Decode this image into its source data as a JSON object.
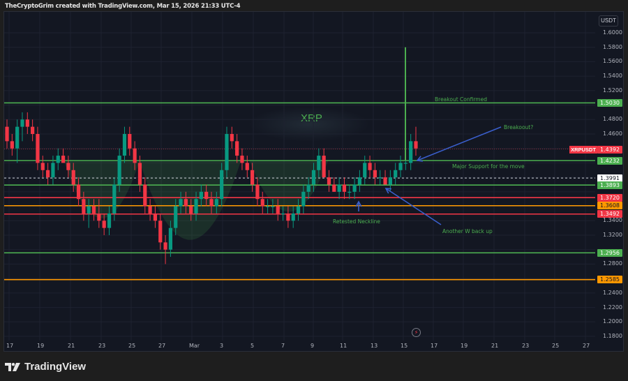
{
  "header": {
    "attribution": "TheCryptoGrim created with TradingView.com, Mar 15, 2026 21:33 UTC-4"
  },
  "footer": {
    "logo_text": "TradingView",
    "logo_icon": "tradingview-logo-icon"
  },
  "chart": {
    "symbol": "XRPUSDT",
    "watermark": "XRP",
    "currency": "USDT",
    "current_price": "1.4392",
    "colors": {
      "background": "#131722",
      "up": "#089981",
      "down": "#f23645",
      "green_line": "#4caf50",
      "red_line": "#f23645",
      "orange_line": "#ff9800",
      "arrow": "#3a5fcd",
      "grid": "#1e2230"
    }
  },
  "price_axis": {
    "ticks": [
      "1.6000",
      "1.5800",
      "1.5600",
      "1.5400",
      "1.5200",
      "1.4800",
      "1.4600",
      "1.3400",
      "1.3200",
      "1.2800",
      "1.2400",
      "1.2200",
      "1.2000",
      "1.1800"
    ]
  },
  "time_axis": {
    "ticks": [
      "17",
      "19",
      "21",
      "23",
      "25",
      "27",
      "Mar",
      "3",
      "5",
      "7",
      "9",
      "11",
      "13",
      "15",
      "17",
      "19",
      "21",
      "23",
      "25",
      "27"
    ]
  },
  "levels": [
    {
      "label": "1.5030",
      "color": "#4caf50",
      "kind": "green"
    },
    {
      "label": "1.4232",
      "color": "#4caf50",
      "kind": "green"
    },
    {
      "label": "1.3991",
      "color": "#ffffff",
      "kind": "dashed"
    },
    {
      "label": "1.3893",
      "color": "#4caf50",
      "kind": "green"
    },
    {
      "label": "1.3720",
      "color": "#f23645",
      "kind": "red"
    },
    {
      "label": "1.3608",
      "color": "#ff9800",
      "kind": "orange"
    },
    {
      "label": "1.3492",
      "color": "#f23645",
      "kind": "red"
    },
    {
      "label": "1.2956",
      "color": "#4caf50",
      "kind": "green"
    },
    {
      "label": "1.2585",
      "color": "#ff9800",
      "kind": "orange"
    }
  ],
  "annotations": {
    "breakout_confirmed": "Breakout Confirmed",
    "breakout_question": "Breakoout?",
    "major_support": "Major Support for the move",
    "retested_neckline": "Retested Neckline",
    "another_w": "Another W back up"
  },
  "chart_data": {
    "type": "candlestick",
    "title": "XRPUSDT",
    "watermark": "XRP",
    "xlabel": "",
    "ylabel": "USDT",
    "ylim": [
      1.17,
      1.61
    ],
    "x_ticks": [
      "17",
      "19",
      "21",
      "23",
      "25",
      "27",
      "Mar",
      "3",
      "5",
      "7",
      "9",
      "11",
      "13",
      "15",
      "17",
      "19",
      "21",
      "23",
      "25",
      "27"
    ],
    "y_ticks": [
      1.18,
      1.2,
      1.22,
      1.24,
      1.26,
      1.28,
      1.3,
      1.32,
      1.34,
      1.36,
      1.38,
      1.4,
      1.42,
      1.44,
      1.46,
      1.48,
      1.5,
      1.52,
      1.54,
      1.56,
      1.58,
      1.6
    ],
    "grid": true,
    "horizontal_levels": [
      1.503,
      1.4232,
      1.3991,
      1.3893,
      1.372,
      1.3608,
      1.3492,
      1.2956,
      1.2585
    ],
    "vertical_marker": {
      "x": "15",
      "from": 1.4232,
      "to": 1.58
    },
    "last_price": 1.4392,
    "candles_ohlc_approx": [
      [
        1.47,
        1.48,
        1.44,
        1.45
      ],
      [
        1.45,
        1.46,
        1.43,
        1.44
      ],
      [
        1.44,
        1.48,
        1.42,
        1.47
      ],
      [
        1.47,
        1.49,
        1.45,
        1.48
      ],
      [
        1.48,
        1.49,
        1.46,
        1.47
      ],
      [
        1.47,
        1.48,
        1.45,
        1.46
      ],
      [
        1.46,
        1.47,
        1.41,
        1.42
      ],
      [
        1.42,
        1.43,
        1.4,
        1.41
      ],
      [
        1.41,
        1.42,
        1.39,
        1.4
      ],
      [
        1.4,
        1.43,
        1.39,
        1.42
      ],
      [
        1.42,
        1.44,
        1.41,
        1.43
      ],
      [
        1.43,
        1.44,
        1.42,
        1.42
      ],
      [
        1.42,
        1.43,
        1.4,
        1.41
      ],
      [
        1.41,
        1.42,
        1.38,
        1.39
      ],
      [
        1.39,
        1.4,
        1.36,
        1.37
      ],
      [
        1.37,
        1.38,
        1.34,
        1.35
      ],
      [
        1.35,
        1.37,
        1.33,
        1.36
      ],
      [
        1.36,
        1.37,
        1.34,
        1.35
      ],
      [
        1.35,
        1.37,
        1.33,
        1.34
      ],
      [
        1.34,
        1.35,
        1.32,
        1.33
      ],
      [
        1.33,
        1.36,
        1.32,
        1.35
      ],
      [
        1.35,
        1.4,
        1.34,
        1.39
      ],
      [
        1.39,
        1.44,
        1.38,
        1.43
      ],
      [
        1.43,
        1.47,
        1.42,
        1.46
      ],
      [
        1.46,
        1.47,
        1.43,
        1.44
      ],
      [
        1.44,
        1.45,
        1.41,
        1.42
      ],
      [
        1.42,
        1.43,
        1.38,
        1.39
      ],
      [
        1.39,
        1.4,
        1.35,
        1.36
      ],
      [
        1.36,
        1.37,
        1.34,
        1.35
      ],
      [
        1.35,
        1.36,
        1.33,
        1.34
      ],
      [
        1.34,
        1.35,
        1.3,
        1.31
      ],
      [
        1.31,
        1.32,
        1.28,
        1.3
      ],
      [
        1.3,
        1.34,
        1.29,
        1.33
      ],
      [
        1.33,
        1.37,
        1.32,
        1.36
      ],
      [
        1.36,
        1.38,
        1.35,
        1.37
      ],
      [
        1.37,
        1.38,
        1.35,
        1.36
      ],
      [
        1.36,
        1.37,
        1.34,
        1.35
      ],
      [
        1.35,
        1.38,
        1.34,
        1.37
      ],
      [
        1.37,
        1.39,
        1.36,
        1.38
      ],
      [
        1.38,
        1.39,
        1.36,
        1.37
      ],
      [
        1.37,
        1.38,
        1.35,
        1.36
      ],
      [
        1.36,
        1.38,
        1.35,
        1.37
      ],
      [
        1.37,
        1.42,
        1.36,
        1.41
      ],
      [
        1.41,
        1.47,
        1.4,
        1.46
      ],
      [
        1.46,
        1.47,
        1.44,
        1.45
      ],
      [
        1.45,
        1.46,
        1.42,
        1.43
      ],
      [
        1.43,
        1.44,
        1.41,
        1.42
      ],
      [
        1.42,
        1.43,
        1.4,
        1.41
      ],
      [
        1.41,
        1.42,
        1.38,
        1.39
      ],
      [
        1.39,
        1.4,
        1.36,
        1.37
      ],
      [
        1.37,
        1.38,
        1.35,
        1.36
      ],
      [
        1.36,
        1.37,
        1.35,
        1.36
      ],
      [
        1.36,
        1.37,
        1.35,
        1.36
      ],
      [
        1.36,
        1.37,
        1.34,
        1.35
      ],
      [
        1.35,
        1.36,
        1.34,
        1.35
      ],
      [
        1.35,
        1.36,
        1.33,
        1.34
      ],
      [
        1.34,
        1.36,
        1.33,
        1.35
      ],
      [
        1.35,
        1.37,
        1.34,
        1.36
      ],
      [
        1.36,
        1.39,
        1.35,
        1.38
      ],
      [
        1.38,
        1.4,
        1.37,
        1.39
      ],
      [
        1.39,
        1.42,
        1.38,
        1.41
      ],
      [
        1.41,
        1.44,
        1.4,
        1.43
      ],
      [
        1.43,
        1.44,
        1.4,
        1.4
      ],
      [
        1.4,
        1.41,
        1.38,
        1.39
      ],
      [
        1.39,
        1.4,
        1.38,
        1.38
      ],
      [
        1.38,
        1.4,
        1.37,
        1.39
      ],
      [
        1.39,
        1.4,
        1.37,
        1.38
      ],
      [
        1.38,
        1.39,
        1.37,
        1.38
      ],
      [
        1.38,
        1.4,
        1.37,
        1.39
      ],
      [
        1.39,
        1.41,
        1.38,
        1.4
      ],
      [
        1.4,
        1.43,
        1.39,
        1.42
      ],
      [
        1.42,
        1.43,
        1.4,
        1.41
      ],
      [
        1.41,
        1.42,
        1.39,
        1.4
      ],
      [
        1.4,
        1.41,
        1.39,
        1.4
      ],
      [
        1.4,
        1.41,
        1.39,
        1.39
      ],
      [
        1.39,
        1.41,
        1.38,
        1.4
      ],
      [
        1.4,
        1.42,
        1.39,
        1.41
      ],
      [
        1.41,
        1.43,
        1.4,
        1.42
      ],
      [
        1.42,
        1.43,
        1.41,
        1.42
      ],
      [
        1.42,
        1.46,
        1.41,
        1.45
      ],
      [
        1.45,
        1.47,
        1.43,
        1.44
      ]
    ]
  }
}
